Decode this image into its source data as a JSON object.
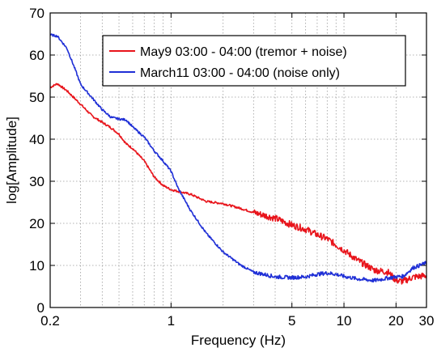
{
  "chart_data": {
    "type": "line",
    "xlabel": "Frequency (Hz)",
    "ylabel": "log[Amplitude]",
    "xscale": "log",
    "xlim": [
      0.2,
      30
    ],
    "ylim": [
      0,
      70
    ],
    "grid": true,
    "legend_position": "top-right",
    "x_ticks": [
      0.2,
      1,
      5,
      10,
      20,
      30
    ],
    "x_tick_labels": [
      "0.2",
      "1",
      "5",
      "10",
      "20",
      "30"
    ],
    "y_ticks": [
      0,
      10,
      20,
      30,
      40,
      50,
      60,
      70
    ],
    "y_tick_labels": [
      "0",
      "10",
      "20",
      "30",
      "40",
      "50",
      "60",
      "70"
    ],
    "series": [
      {
        "name": "May9 03:00 - 04:00 (tremor + noise)",
        "color": "#e8141b",
        "x": [
          0.2,
          0.22,
          0.25,
          0.3,
          0.35,
          0.4,
          0.45,
          0.5,
          0.55,
          0.6,
          0.7,
          0.8,
          0.9,
          1.0,
          1.1,
          1.3,
          1.6,
          2.0,
          2.5,
          3.0,
          4.0,
          5.0,
          6.0,
          7.0,
          8.0,
          10.0,
          12.0,
          15.0,
          18.0,
          20.0,
          22.0,
          25.0,
          30.0
        ],
        "y": [
          52.3,
          53.2,
          51.5,
          48.3,
          45.5,
          44.0,
          42.7,
          41.2,
          38.9,
          37.8,
          34.8,
          31.0,
          29.0,
          28.0,
          27.6,
          26.9,
          25.2,
          24.7,
          23.6,
          22.6,
          21.2,
          19.6,
          18.6,
          17.3,
          16.3,
          13.6,
          11.2,
          8.9,
          8.4,
          6.4,
          6.2,
          7.2,
          7.6
        ]
      },
      {
        "name": "March11 03:00 - 04:00 (noise only)",
        "color": "#1f2fd6",
        "x": [
          0.2,
          0.22,
          0.25,
          0.28,
          0.3,
          0.35,
          0.4,
          0.45,
          0.5,
          0.55,
          0.6,
          0.7,
          0.8,
          0.9,
          1.0,
          1.1,
          1.3,
          1.6,
          2.0,
          2.5,
          3.0,
          4.0,
          5.0,
          6.0,
          7.0,
          8.0,
          9.0,
          10.0,
          12.0,
          15.0,
          18.0,
          20.0,
          22.0,
          25.0,
          30.0
        ],
        "y": [
          64.8,
          64.5,
          61.6,
          56.4,
          53.0,
          49.8,
          47.0,
          45.2,
          44.8,
          44.6,
          42.9,
          40.5,
          37.2,
          34.8,
          32.4,
          28.3,
          23.0,
          17.6,
          13.2,
          10.2,
          8.4,
          7.3,
          7.1,
          7.3,
          7.9,
          8.2,
          7.9,
          7.4,
          6.8,
          6.4,
          7.0,
          7.3,
          7.4,
          9.4,
          10.6
        ]
      }
    ]
  }
}
